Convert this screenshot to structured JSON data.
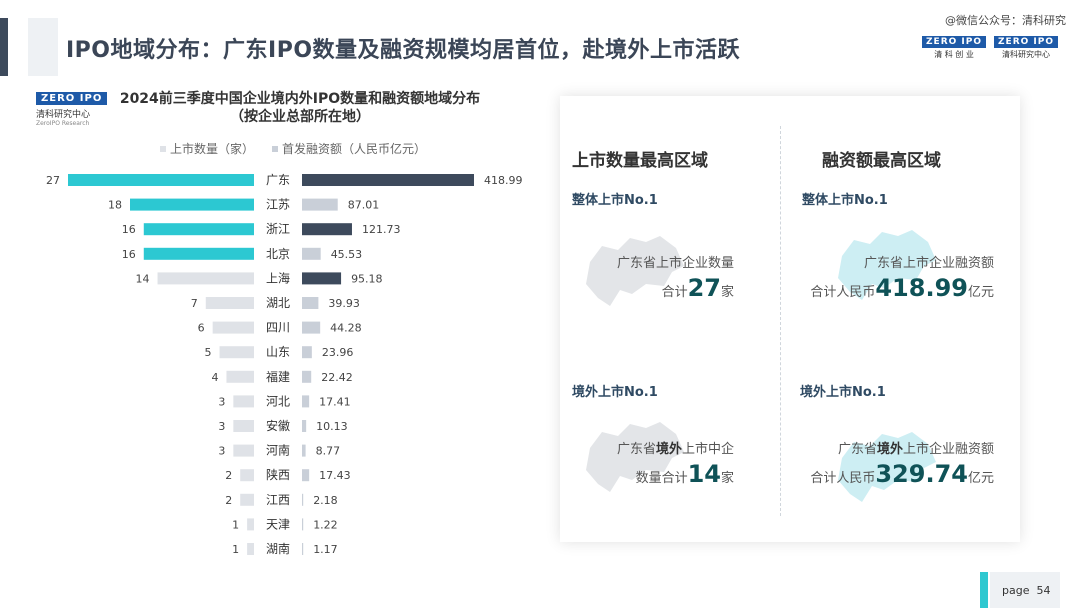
{
  "header": {
    "title": "IPO地域分布：广东IPO数量及融资规模均居首位，赴境外上市活跃",
    "watermark": "@微信公众号：清科研究",
    "logos": [
      {
        "badge": "ZERO IPO",
        "label": "清 科 创 业"
      },
      {
        "badge": "ZERO IPO",
        "label": "清科研究中心"
      }
    ]
  },
  "chart_logo": {
    "badge": "ZERO IPO",
    "label": "清科研究中心",
    "sublabel": "ZeroIPO Research"
  },
  "chart_data": {
    "type": "bar",
    "title": "2024前三季度中国企业境内外IPO数量和融资额地域分布",
    "subtitle": "（按企业总部所在地）",
    "legend_position": "top",
    "categories": [
      "广东",
      "江苏",
      "浙江",
      "北京",
      "上海",
      "湖北",
      "四川",
      "山东",
      "福建",
      "河北",
      "安徽",
      "河南",
      "陕西",
      "江西",
      "天津",
      "湖南"
    ],
    "series": [
      {
        "name": "上市数量（家）",
        "values": [
          27,
          18,
          16,
          16,
          14,
          7,
          6,
          5,
          4,
          3,
          3,
          3,
          2,
          2,
          1,
          1
        ]
      },
      {
        "name": "首发融资额（人民币亿元）",
        "values": [
          418.99,
          87.01,
          121.73,
          45.53,
          95.18,
          39.93,
          44.28,
          23.96,
          22.42,
          17.41,
          10.13,
          8.77,
          17.43,
          2.18,
          1.22,
          1.17
        ]
      }
    ],
    "count_highlight": [
      true,
      true,
      true,
      true,
      false,
      false,
      false,
      false,
      false,
      false,
      false,
      false,
      false,
      false,
      false,
      false
    ],
    "amount_highlight": [
      true,
      false,
      true,
      false,
      true,
      false,
      false,
      false,
      false,
      false,
      false,
      false,
      false,
      false,
      false,
      false
    ],
    "colors": {
      "count_highlight": "#2cc8d2",
      "count_normal": "#dfe2e7",
      "amount_highlight": "#3d4a5c",
      "amount_normal": "#c9cfd8"
    }
  },
  "panel": {
    "left_heading": "上市数量最高区域",
    "right_heading": "融资额最高区域",
    "cards": [
      {
        "sub": "整体上市No.1",
        "line1": "广东省上市企业数量",
        "line2_pre": "合计",
        "big": "27",
        "unit": "家"
      },
      {
        "sub": "整体上市No.1",
        "line1": "广东省上市企业融资额",
        "line2_pre": "合计人民币",
        "big": "418.99",
        "unit": "亿元"
      },
      {
        "sub": "境外上市No.1",
        "line1_pre": "广东省",
        "line1_bold": "境外",
        "line1_post": "上市中企",
        "line2_pre": "数量合计",
        "big": "14",
        "unit": "家"
      },
      {
        "sub": "境外上市No.1",
        "line1_pre": "广东省",
        "line1_bold": "境外",
        "line1_post": "上市企业融资额",
        "line2_pre": "合计人民币",
        "big": "329.74",
        "unit": "亿元"
      }
    ],
    "map_colors": {
      "grey": "#e3e5e8",
      "cyan": "#cdeef3"
    }
  },
  "footer": {
    "page_label": "page",
    "page_number": "54"
  }
}
